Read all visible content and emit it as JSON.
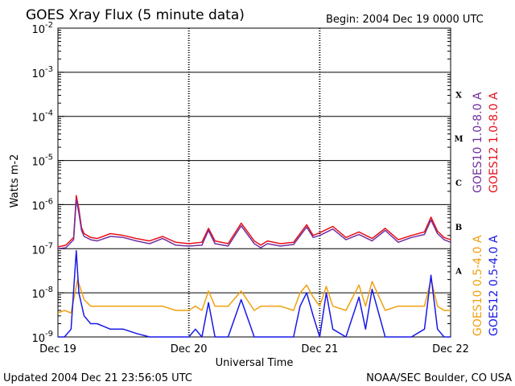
{
  "header": {
    "title": "GOES Xray Flux (5 minute data)",
    "begin": "Begin:  2004 Dec 19 0000 UTC"
  },
  "footer": {
    "updated": "Updated 2004 Dec 21 23:56:05 UTC",
    "credit": "NOAA/SEC Boulder, CO USA"
  },
  "colors": {
    "goes10_long": "#7030a0",
    "goes12_long": "#e8101a",
    "goes10_short": "#f0a010",
    "goes12_short": "#1818e8"
  },
  "chart_data": {
    "type": "line",
    "title": "GOES Xray Flux (5 minute data)",
    "xlabel": "Universal Time",
    "ylabel": "Watts m-2",
    "yscale": "log",
    "ylim": [
      1e-09,
      0.01
    ],
    "xlim": [
      0,
      3
    ],
    "x_unit": "days since Dec 19 0000 UTC",
    "x_ticks": [
      {
        "x": 0,
        "label": "Dec 19"
      },
      {
        "x": 1,
        "label": "Dec 20"
      },
      {
        "x": 2,
        "label": "Dec 21"
      },
      {
        "x": 3,
        "label": "Dec 22"
      }
    ],
    "y_ticks": [
      {
        "exp": -2,
        "label": "10",
        "sup": "-2"
      },
      {
        "exp": -3,
        "label": "10",
        "sup": "-3"
      },
      {
        "exp": -4,
        "label": "10",
        "sup": "-4"
      },
      {
        "exp": -5,
        "label": "10",
        "sup": "-5"
      },
      {
        "exp": -6,
        "label": "10",
        "sup": "-6"
      },
      {
        "exp": -7,
        "label": "10",
        "sup": "-7"
      },
      {
        "exp": -8,
        "label": "10",
        "sup": "-8"
      },
      {
        "exp": -9,
        "label": "10",
        "sup": "-9"
      }
    ],
    "flare_classes": [
      {
        "label": "X",
        "exp": -3.5
      },
      {
        "label": "M",
        "exp": -4.5
      },
      {
        "label": "C",
        "exp": -5.5
      },
      {
        "label": "B",
        "exp": -6.5
      },
      {
        "label": "A",
        "exp": -7.5
      }
    ],
    "grid": true,
    "legend": "right side, vertical text",
    "series": [
      {
        "name": "GOES12 1.0-8.0 A",
        "color": "#e8101a",
        "x": [
          0,
          0.06,
          0.12,
          0.14,
          0.16,
          0.18,
          0.2,
          0.25,
          0.3,
          0.4,
          0.5,
          0.6,
          0.7,
          0.8,
          0.9,
          1.0,
          1.1,
          1.15,
          1.2,
          1.3,
          1.4,
          1.5,
          1.55,
          1.6,
          1.7,
          1.8,
          1.9,
          1.95,
          2.0,
          2.1,
          2.2,
          2.3,
          2.4,
          2.5,
          2.6,
          2.7,
          2.8,
          2.85,
          2.9,
          2.95,
          3.0
        ],
        "y": [
          1.1e-07,
          1.2e-07,
          1.8e-07,
          1.6e-06,
          8e-07,
          3e-07,
          2.2e-07,
          1.8e-07,
          1.7e-07,
          2.2e-07,
          2e-07,
          1.7e-07,
          1.5e-07,
          1.9e-07,
          1.4e-07,
          1.3e-07,
          1.4e-07,
          2.9e-07,
          1.5e-07,
          1.3e-07,
          3.8e-07,
          1.5e-07,
          1.2e-07,
          1.5e-07,
          1.3e-07,
          1.4e-07,
          3.5e-07,
          2e-07,
          2.3e-07,
          3.2e-07,
          1.8e-07,
          2.4e-07,
          1.7e-07,
          2.9e-07,
          1.6e-07,
          2e-07,
          2.4e-07,
          5.2e-07,
          2.5e-07,
          1.8e-07,
          1.6e-07
        ]
      },
      {
        "name": "GOES10 1.0-8.0 A",
        "color": "#7030a0",
        "x": [
          0,
          0.06,
          0.12,
          0.14,
          0.16,
          0.18,
          0.2,
          0.25,
          0.3,
          0.4,
          0.5,
          0.6,
          0.7,
          0.8,
          0.9,
          1.0,
          1.1,
          1.15,
          1.2,
          1.3,
          1.4,
          1.5,
          1.55,
          1.6,
          1.7,
          1.8,
          1.9,
          1.95,
          2.0,
          2.1,
          2.2,
          2.3,
          2.4,
          2.5,
          2.6,
          2.7,
          2.8,
          2.85,
          2.9,
          2.95,
          3.0
        ],
        "y": [
          1e-07,
          1.05e-07,
          1.6e-07,
          1.3e-06,
          6.5e-07,
          2.6e-07,
          1.9e-07,
          1.6e-07,
          1.5e-07,
          1.9e-07,
          1.8e-07,
          1.5e-07,
          1.3e-07,
          1.7e-07,
          1.2e-07,
          1.15e-07,
          1.2e-07,
          2.6e-07,
          1.3e-07,
          1.15e-07,
          3.3e-07,
          1.3e-07,
          1.05e-07,
          1.3e-07,
          1.15e-07,
          1.25e-07,
          3.1e-07,
          1.8e-07,
          2e-07,
          2.8e-07,
          1.6e-07,
          2.1e-07,
          1.5e-07,
          2.6e-07,
          1.4e-07,
          1.8e-07,
          2.1e-07,
          4.5e-07,
          2.2e-07,
          1.6e-07,
          1.4e-07
        ]
      },
      {
        "name": "GOES10 0.5-4.0 A",
        "color": "#f0a010",
        "x": [
          0,
          0.05,
          0.1,
          0.15,
          0.2,
          0.25,
          0.3,
          0.4,
          0.5,
          0.6,
          0.7,
          0.8,
          0.9,
          1.0,
          1.05,
          1.1,
          1.15,
          1.2,
          1.3,
          1.4,
          1.5,
          1.55,
          1.6,
          1.7,
          1.8,
          1.85,
          1.9,
          1.95,
          2.0,
          2.05,
          2.1,
          2.2,
          2.3,
          2.35,
          2.4,
          2.5,
          2.6,
          2.7,
          2.8,
          2.85,
          2.9,
          2.95,
          3.0
        ],
        "y": [
          3.5e-09,
          4e-09,
          3.5e-09,
          2e-08,
          7e-09,
          5e-09,
          5e-09,
          5e-09,
          5e-09,
          5e-09,
          5e-09,
          5e-09,
          4e-09,
          4e-09,
          5e-09,
          4e-09,
          1.1e-08,
          5e-09,
          5e-09,
          1.1e-08,
          4e-09,
          5e-09,
          5e-09,
          5e-09,
          4e-09,
          1e-08,
          1.5e-08,
          8e-09,
          5e-09,
          1.4e-08,
          5e-09,
          4e-09,
          1.5e-08,
          5e-09,
          1.8e-08,
          4e-09,
          5e-09,
          5e-09,
          5e-09,
          2e-08,
          5e-09,
          4e-09,
          4e-09
        ]
      },
      {
        "name": "GOES12 0.5-4.0 A",
        "color": "#1818e8",
        "x": [
          0,
          0.05,
          0.1,
          0.14,
          0.16,
          0.2,
          0.25,
          0.3,
          0.4,
          0.5,
          0.6,
          0.7,
          0.8,
          0.9,
          1.0,
          1.05,
          1.1,
          1.15,
          1.2,
          1.3,
          1.4,
          1.5,
          1.55,
          1.6,
          1.7,
          1.8,
          1.85,
          1.9,
          1.95,
          2.0,
          2.05,
          2.1,
          2.2,
          2.3,
          2.35,
          2.4,
          2.5,
          2.6,
          2.7,
          2.8,
          2.85,
          2.9,
          2.95,
          3.0
        ],
        "y": [
          1e-09,
          1e-09,
          1.5e-09,
          9e-08,
          1e-08,
          3e-09,
          2e-09,
          2e-09,
          1.5e-09,
          1.5e-09,
          1.2e-09,
          1e-09,
          1e-09,
          1e-09,
          1e-09,
          1.5e-09,
          1e-09,
          6e-09,
          1e-09,
          1e-09,
          7e-09,
          1e-09,
          1e-09,
          1e-09,
          1e-09,
          1e-09,
          5e-09,
          1e-08,
          3e-09,
          1e-09,
          1e-08,
          1.5e-09,
          1e-09,
          8e-09,
          1.5e-09,
          1.2e-08,
          1e-09,
          1e-09,
          1e-09,
          1.5e-09,
          2.5e-08,
          1.5e-09,
          1e-09,
          1e-09
        ]
      }
    ]
  }
}
